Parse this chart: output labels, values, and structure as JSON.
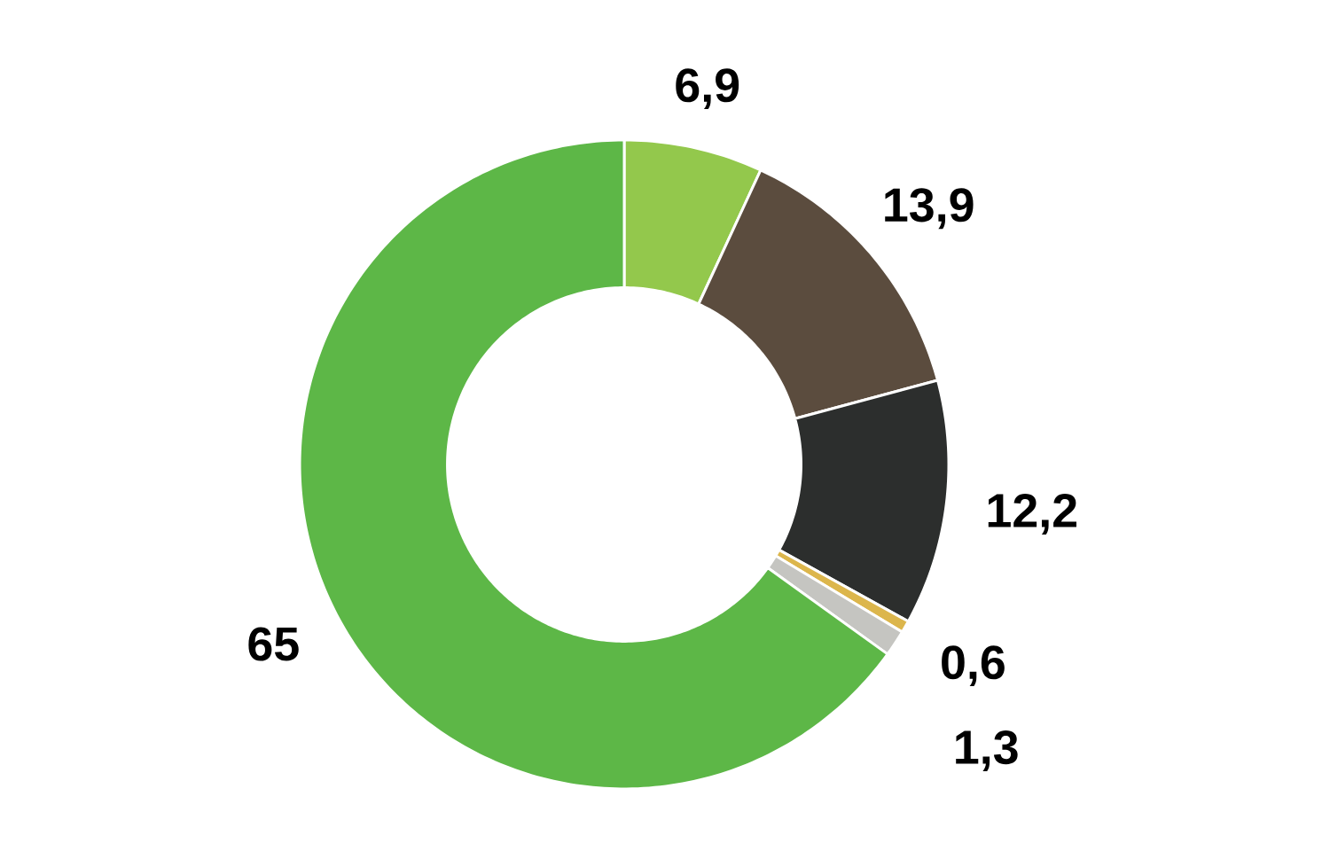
{
  "chart_data": {
    "type": "donut",
    "categories": [
      null,
      null,
      null,
      null,
      null,
      null
    ],
    "values": [
      6.9,
      13.9,
      12.2,
      0.6,
      1.3,
      65
    ],
    "value_labels": [
      "6,9",
      "13,9",
      "12,2",
      "0,6",
      "1,3",
      "65"
    ],
    "colors": [
      "#93c84c",
      "#5b4c3e",
      "#2c2e2d",
      "#dcb64c",
      "#c5c5c1",
      "#5db747"
    ]
  }
}
